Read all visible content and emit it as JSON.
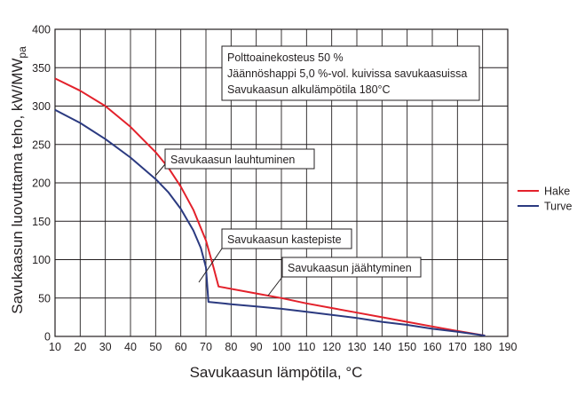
{
  "chart_data": {
    "type": "line",
    "xlabel": "Savukaasun lämpötila, °C",
    "ylabel": "Savukaasun luovuttama teho, kW/MW",
    "ylabel_sub": "pa",
    "xlim": [
      10,
      190
    ],
    "ylim": [
      0,
      400
    ],
    "xticks": [
      10,
      20,
      30,
      40,
      50,
      60,
      70,
      80,
      90,
      100,
      110,
      120,
      130,
      140,
      150,
      160,
      170,
      180,
      190
    ],
    "yticks": [
      0,
      50,
      100,
      150,
      200,
      250,
      300,
      350,
      400
    ],
    "grid": true,
    "legend_position": "right",
    "conditions": [
      "Polttoainekosteus 50 %",
      "Jäännöshappi 5,0 %-vol. kuivissa savukaasuissa",
      "Savukaasun alkulämpötila 180°C"
    ],
    "annotations": [
      {
        "text": "Savukaasun lauhtuminen",
        "x": 57,
        "y": 205
      },
      {
        "text": "Savukaasun kastepiste",
        "x": 75,
        "y": 66
      },
      {
        "text": "Savukaasun jäähtyminen",
        "x": 102,
        "y": 50
      }
    ],
    "series": [
      {
        "name": "Hake",
        "color": "#e3212b",
        "points": [
          [
            10,
            336
          ],
          [
            20,
            320
          ],
          [
            30,
            300
          ],
          [
            40,
            273
          ],
          [
            50,
            240
          ],
          [
            55,
            220
          ],
          [
            60,
            195
          ],
          [
            65,
            165
          ],
          [
            70,
            125
          ],
          [
            73,
            90
          ],
          [
            75,
            65
          ],
          [
            90,
            56
          ],
          [
            100,
            50
          ],
          [
            110,
            43
          ],
          [
            120,
            37
          ],
          [
            130,
            31
          ],
          [
            140,
            25
          ],
          [
            150,
            19
          ],
          [
            160,
            13
          ],
          [
            170,
            7
          ],
          [
            181,
            1
          ]
        ]
      },
      {
        "name": "Turve",
        "color": "#2b3a80",
        "points": [
          [
            10,
            295
          ],
          [
            20,
            278
          ],
          [
            30,
            257
          ],
          [
            40,
            233
          ],
          [
            50,
            205
          ],
          [
            55,
            188
          ],
          [
            60,
            166
          ],
          [
            65,
            138
          ],
          [
            68,
            115
          ],
          [
            70,
            90
          ],
          [
            71,
            45
          ],
          [
            80,
            42
          ],
          [
            90,
            39
          ],
          [
            100,
            36
          ],
          [
            110,
            32
          ],
          [
            120,
            28
          ],
          [
            130,
            24
          ],
          [
            140,
            19
          ],
          [
            150,
            15
          ],
          [
            160,
            10
          ],
          [
            170,
            6
          ],
          [
            181,
            1
          ]
        ]
      }
    ]
  }
}
